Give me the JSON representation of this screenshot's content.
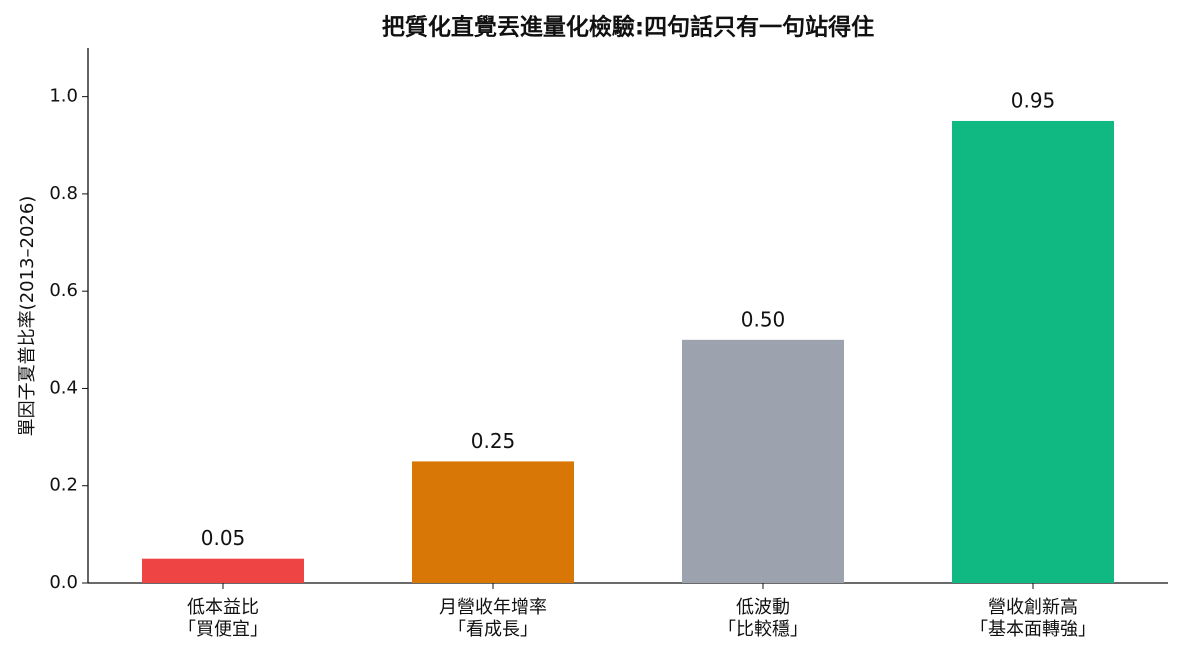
{
  "chart_data": {
    "type": "bar",
    "title": "把質化直覺丟進量化檢驗:四句話只有一句站得住",
    "y_label": "單因子夏普比率(2013–2026)",
    "categories": [
      "低本益比\n「買便宜」",
      "月營收年增率\n「看成長」",
      "低波動\n「比較穩」",
      "營收創新高\n「基本面轉強」"
    ],
    "values": [
      0.05,
      0.25,
      0.5,
      0.95
    ],
    "value_labels": [
      "0.05",
      "0.25",
      "0.50",
      "0.95"
    ],
    "colors": [
      "#ef4444",
      "#d97706",
      "#9ca3af",
      "#10b981"
    ],
    "ylim": [
      0,
      1.1
    ],
    "yticks": [
      {
        "value": 0,
        "label": "0.0"
      },
      {
        "value": 0.2,
        "label": "0.2"
      },
      {
        "value": 0.4,
        "label": "0.4"
      },
      {
        "value": 0.6,
        "label": "0.6"
      },
      {
        "value": 0.8,
        "label": "0.8"
      },
      {
        "value": 1,
        "label": "1.0"
      }
    ],
    "grid": false
  }
}
